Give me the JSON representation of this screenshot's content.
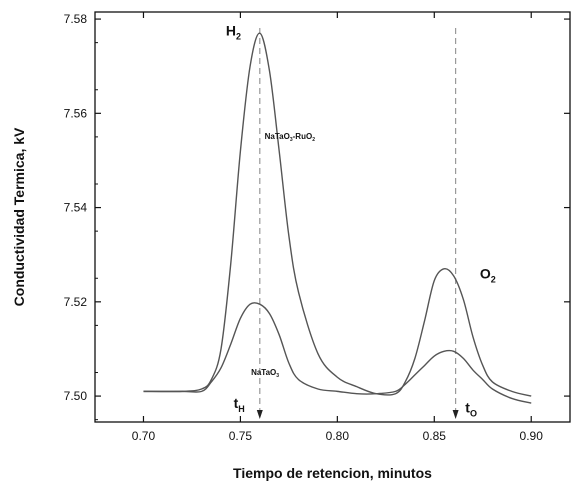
{
  "chart_data": {
    "type": "line",
    "xlabel": "Tiempo de retencion, minutos",
    "ylabel": "Conductividad Termica, kV",
    "xlim": [
      0.675,
      0.92
    ],
    "ylim": [
      7.4945,
      7.5815
    ],
    "xticks": [
      0.7,
      0.75,
      0.8,
      0.85,
      0.9
    ],
    "xtick_labels": [
      "0.70",
      "0.75",
      "0.80",
      "0.85",
      "0.90"
    ],
    "yticks": [
      7.5,
      7.52,
      7.54,
      7.56,
      7.58
    ],
    "ytick_labels": [
      "7.50",
      "7.52",
      "7.54",
      "7.56",
      "7.58"
    ],
    "series": [
      {
        "name": "NaTaO3-RuO2",
        "x": [
          0.7,
          0.72,
          0.73,
          0.735,
          0.74,
          0.745,
          0.75,
          0.755,
          0.76,
          0.765,
          0.77,
          0.775,
          0.78,
          0.79,
          0.8,
          0.81,
          0.82,
          0.83,
          0.835,
          0.84,
          0.845,
          0.85,
          0.855,
          0.86,
          0.865,
          0.87,
          0.875,
          0.88,
          0.89,
          0.9
        ],
        "y": [
          7.501,
          7.501,
          7.5015,
          7.5035,
          7.51,
          7.528,
          7.552,
          7.57,
          7.577,
          7.569,
          7.552,
          7.534,
          7.522,
          7.509,
          7.504,
          7.502,
          7.5005,
          7.5005,
          7.503,
          7.508,
          7.516,
          7.5245,
          7.527,
          7.5255,
          7.5205,
          7.5125,
          7.5065,
          7.503,
          7.501,
          7.5
        ]
      },
      {
        "name": "NaTaO3",
        "x": [
          0.7,
          0.72,
          0.73,
          0.735,
          0.74,
          0.745,
          0.75,
          0.755,
          0.76,
          0.765,
          0.77,
          0.775,
          0.78,
          0.79,
          0.8,
          0.81,
          0.82,
          0.83,
          0.835,
          0.84,
          0.845,
          0.85,
          0.855,
          0.86,
          0.865,
          0.87,
          0.875,
          0.88,
          0.89,
          0.9
        ],
        "y": [
          7.501,
          7.501,
          7.501,
          7.503,
          7.506,
          7.511,
          7.5165,
          7.5195,
          7.5195,
          7.5175,
          7.513,
          7.507,
          7.5035,
          7.5015,
          7.501,
          7.5005,
          7.5005,
          7.501,
          7.5025,
          7.5045,
          7.5065,
          7.5085,
          7.5095,
          7.5095,
          7.508,
          7.5055,
          7.5035,
          7.5015,
          7.4995,
          7.4985
        ]
      }
    ],
    "annotations": [
      {
        "text": "H",
        "sub": "2",
        "x": 0.7425,
        "y": 7.5765,
        "size": 14
      },
      {
        "text": "NaTaO",
        "sub": "3",
        "mid": "-RuO",
        "sub2": "2",
        "x": 0.7625,
        "y": 7.5545,
        "size": 8
      },
      {
        "text": "NaTaO",
        "sub": "3",
        "x": 0.7555,
        "y": 7.5045,
        "size": 8
      },
      {
        "text": "O",
        "sub": "2",
        "x": 0.8735,
        "y": 7.525,
        "size": 14
      },
      {
        "text": "t",
        "sub": "H",
        "x": 0.7465,
        "y": 7.4975,
        "size": 14
      },
      {
        "text": "t",
        "sub": "O",
        "x": 0.866,
        "y": 7.4965,
        "size": 14
      }
    ],
    "markers": [
      {
        "x": 0.76
      },
      {
        "x": 0.861
      }
    ],
    "grid": false,
    "line_color": "#555555"
  }
}
